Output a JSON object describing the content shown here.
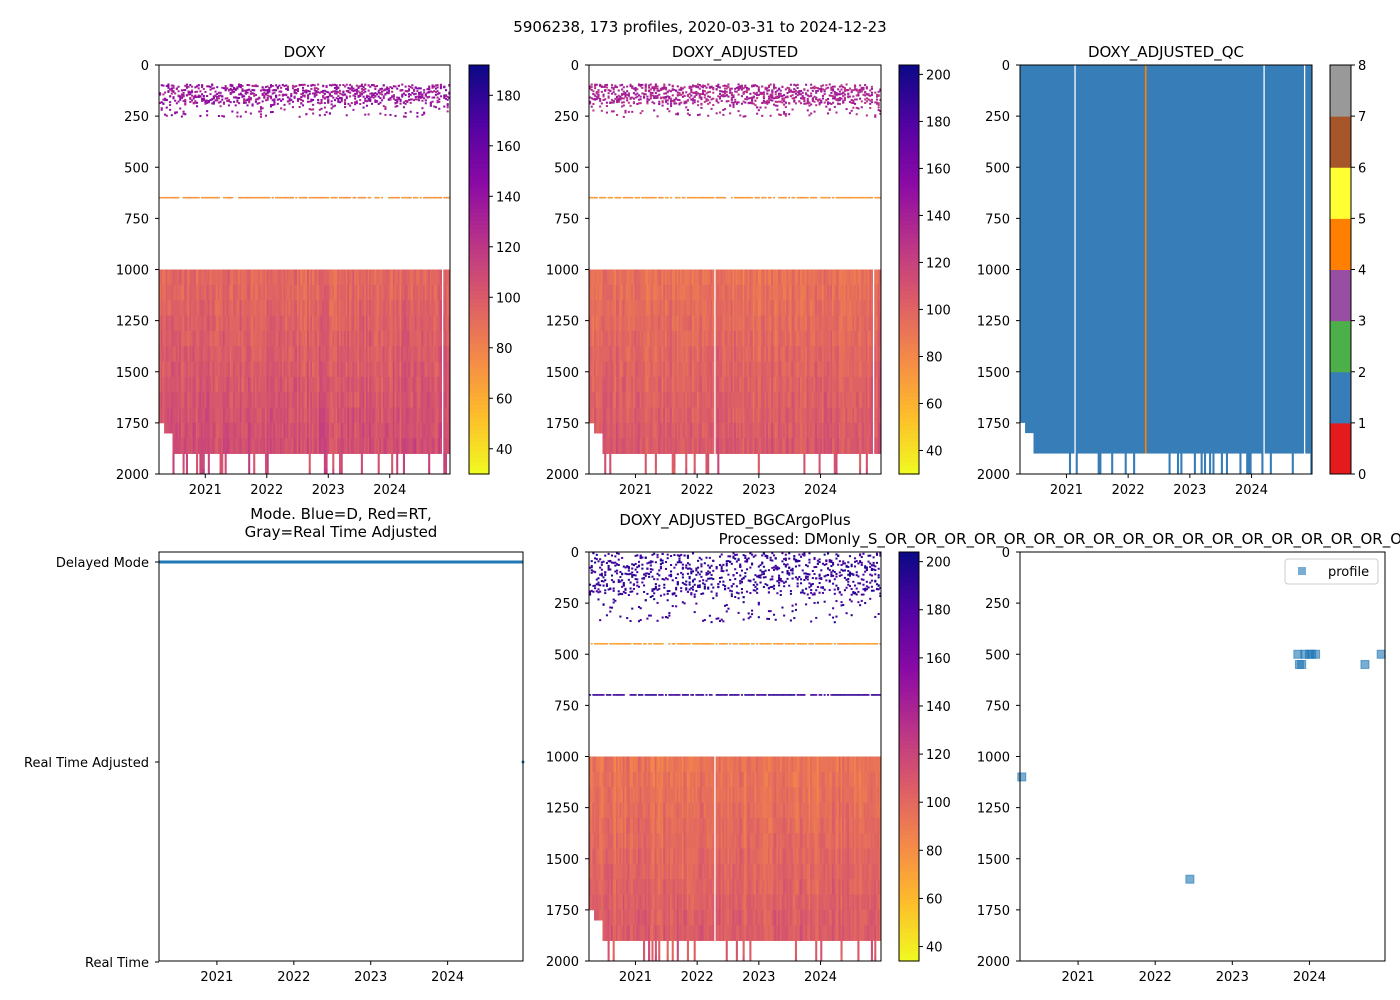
{
  "figure_title": "5906238, 173 profiles, 2020-03-31 to 2024-12-23",
  "chart_data": [
    {
      "id": "doxy",
      "type": "heatmap",
      "title": "DOXY",
      "x_ticks": [
        "2021",
        "2022",
        "2023",
        "2024"
      ],
      "y_ticks": [
        "0",
        "250",
        "500",
        "750",
        "1000",
        "1250",
        "1500",
        "1750",
        "2000"
      ],
      "ylim": [
        2000,
        0
      ],
      "xlim": [
        "2020-03-31",
        "2024-12-23"
      ],
      "colorbar": {
        "cmap": "plasma_r",
        "range": [
          30,
          192
        ],
        "ticks": [
          "40",
          "60",
          "80",
          "100",
          "120",
          "140",
          "160",
          "180"
        ]
      },
      "bands": [
        {
          "depth": [
            90,
            250
          ],
          "value": [
            125,
            150
          ],
          "density": "sparse"
        },
        {
          "depth": [
            645,
            655
          ],
          "value": [
            65,
            75
          ],
          "density": "line"
        },
        {
          "depth": [
            1000,
            1900
          ],
          "value": [
            85,
            115
          ],
          "density": "dense"
        }
      ],
      "gaps": [
        "2024-11"
      ]
    },
    {
      "id": "doxy_adjusted",
      "type": "heatmap",
      "title": "DOXY_ADJUSTED",
      "x_ticks": [
        "2021",
        "2022",
        "2023",
        "2024"
      ],
      "y_ticks": [
        "0",
        "250",
        "500",
        "750",
        "1000",
        "1250",
        "1500",
        "1750",
        "2000"
      ],
      "ylim": [
        2000,
        0
      ],
      "colorbar": {
        "cmap": "plasma_r",
        "range": [
          30,
          204
        ],
        "ticks": [
          "40",
          "60",
          "80",
          "100",
          "120",
          "140",
          "160",
          "180",
          "200"
        ]
      },
      "bands": [
        {
          "depth": [
            90,
            250
          ],
          "value": [
            125,
            150
          ],
          "density": "sparse"
        },
        {
          "depth": [
            645,
            655
          ],
          "value": [
            65,
            75
          ],
          "density": "line"
        },
        {
          "depth": [
            1000,
            1900
          ],
          "value": [
            85,
            115
          ],
          "density": "dense"
        }
      ],
      "gaps": [
        "2022-04",
        "2024-11"
      ]
    },
    {
      "id": "doxy_adjusted_qc",
      "type": "heatmap",
      "title": "DOXY_ADJUSTED_QC",
      "x_ticks": [
        "2021",
        "2022",
        "2023",
        "2024"
      ],
      "y_ticks": [
        "0",
        "250",
        "500",
        "750",
        "1000",
        "1250",
        "1500",
        "1750",
        "2000"
      ],
      "ylim": [
        2000,
        0
      ],
      "colorbar": {
        "cmap": "Set1",
        "range": [
          0,
          8
        ],
        "ticks": [
          "0",
          "1",
          "2",
          "3",
          "4",
          "5",
          "6",
          "7",
          "8"
        ],
        "colors": [
          "#e41a1c",
          "#377eb8",
          "#4daf4a",
          "#984ea3",
          "#ff7f00",
          "#ffff33",
          "#a65628",
          "#f781bf",
          "#999999"
        ]
      },
      "dominant_flag": 1,
      "flag4_profile": "2022-04",
      "gaps": [
        "2021-02",
        "2024-03",
        "2024-11"
      ]
    },
    {
      "id": "mode",
      "type": "scatter",
      "title": "Mode. Blue=D, Red=RT,\nGray=Real Time Adjusted",
      "title_lines": [
        "Mode. Blue=D, Red=RT,",
        "Gray=Real Time Adjusted"
      ],
      "y_ticks": [
        "Delayed Mode",
        "Real Time Adjusted",
        "Real Time"
      ],
      "x_ticks": [
        "2021",
        "2022",
        "2023",
        "2024"
      ],
      "series": [
        {
          "name": "Delayed",
          "level": 0,
          "from": 2020.25,
          "to": 2024.98,
          "color": "#1f77b4"
        },
        {
          "name": "Real Time Adjusted",
          "level": 1,
          "x": [
            2024.98
          ],
          "color": "#1f77b4"
        }
      ]
    },
    {
      "id": "bgcargoplus",
      "type": "heatmap",
      "title": "DOXY_ADJUSTED_BGCArgoPlus",
      "x_ticks": [
        "2021",
        "2022",
        "2023",
        "2024"
      ],
      "y_ticks": [
        "0",
        "250",
        "500",
        "750",
        "1000",
        "1250",
        "1500",
        "1750",
        "2000"
      ],
      "ylim": [
        2000,
        0
      ],
      "colorbar": {
        "cmap": "plasma_r",
        "range": [
          34,
          204
        ],
        "ticks": [
          "40",
          "60",
          "80",
          "100",
          "120",
          "140",
          "160",
          "180",
          "200"
        ]
      },
      "bands": [
        {
          "depth": [
            0,
            340
          ],
          "value": [
            180,
            200
          ],
          "density": "sparse"
        },
        {
          "depth": [
            445,
            455
          ],
          "value": [
            65,
            75
          ],
          "density": "line"
        },
        {
          "depth": [
            695,
            705
          ],
          "value": [
            180,
            200
          ],
          "density": "line"
        },
        {
          "depth": [
            1000,
            1900
          ],
          "value": [
            85,
            115
          ],
          "density": "dense"
        }
      ],
      "gaps": [
        "2022-04"
      ]
    },
    {
      "id": "outliers",
      "type": "scatter",
      "title": "Processed: DMonly_S_OR_OR_OR_OR_OR_OR_OR_OR_OR_OR_OR_OR_OR_OR_OR_OR_OR_OROutliers Removed",
      "x_ticks": [
        "2021",
        "2022",
        "2023",
        "2024"
      ],
      "y_ticks": [
        "0",
        "250",
        "500",
        "750",
        "1000",
        "1250",
        "1500",
        "1750",
        "2000"
      ],
      "ylim": [
        2000,
        0
      ],
      "legend": {
        "label": "profile",
        "placement": "top-right"
      },
      "points": [
        [
          2020.27,
          1100
        ],
        [
          2022.45,
          1600
        ],
        [
          2023.85,
          500
        ],
        [
          2023.87,
          550
        ],
        [
          2023.9,
          550
        ],
        [
          2023.94,
          500
        ],
        [
          2024.0,
          500
        ],
        [
          2024.03,
          500
        ],
        [
          2024.08,
          500
        ],
        [
          2024.72,
          550
        ],
        [
          2024.93,
          500
        ]
      ]
    }
  ]
}
